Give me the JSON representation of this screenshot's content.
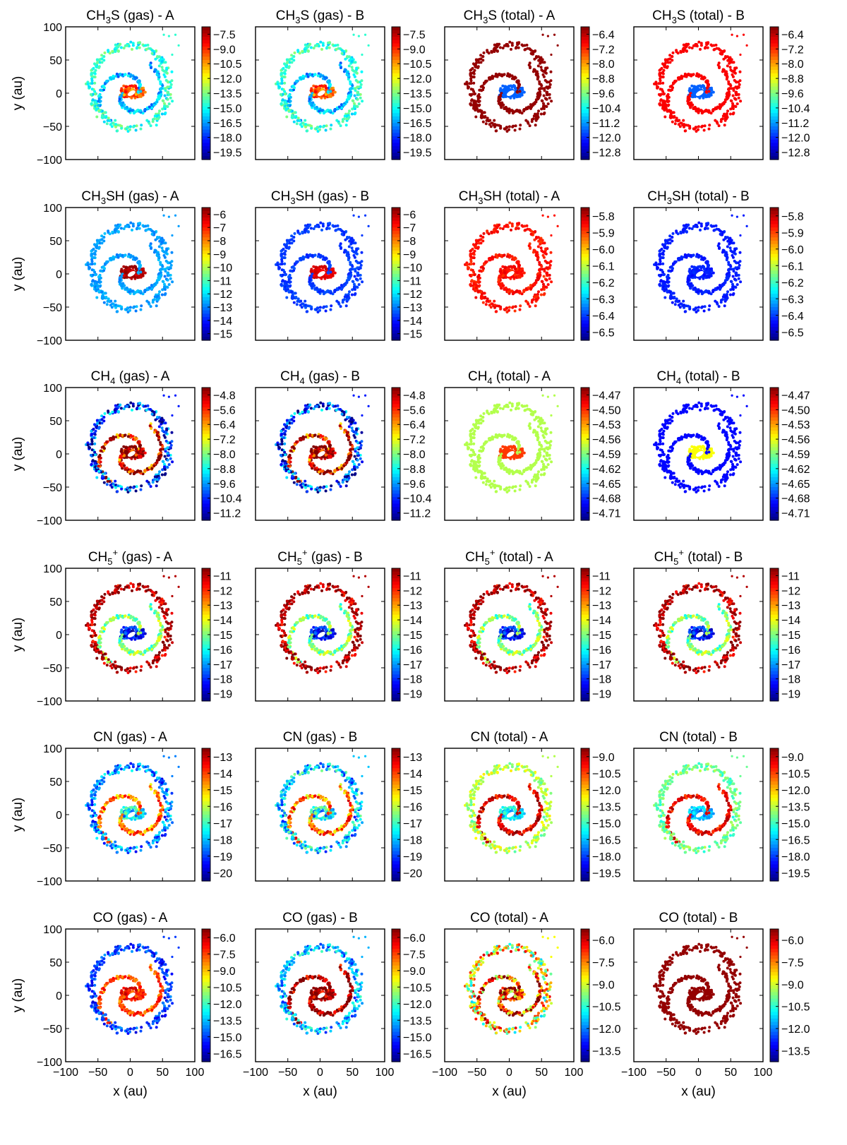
{
  "figure": {
    "x_axis_label": "x (au)",
    "y_axis_label": "y (au)",
    "axis_ticks": [
      -100,
      -50,
      0,
      50,
      100
    ],
    "axis_range": [
      -100,
      100
    ],
    "colormap": "jet"
  },
  "chart_data": [
    {
      "type": "scatter",
      "title_main": "CH",
      "title_sub": "3",
      "title_sup": "",
      "title_tail": "S (gas) -  A",
      "colorbar_ticks": [
        "-7.5",
        "-9.0",
        "-10.5",
        "-12.0",
        "-13.5",
        "-15.0",
        "-16.5",
        "-18.0",
        "-19.5"
      ],
      "scheme": {
        "ring": 0.42,
        "arm": 0.3,
        "core": 0.78,
        "noise": 0.1
      }
    },
    {
      "type": "scatter",
      "title_main": "CH",
      "title_sub": "3",
      "title_sup": "",
      "title_tail": "S (gas) -  B",
      "colorbar_ticks": [
        "-7.5",
        "-9.0",
        "-10.5",
        "-12.0",
        "-13.5",
        "-15.0",
        "-16.5",
        "-18.0",
        "-19.5"
      ],
      "scheme": {
        "ring": 0.42,
        "arm": 0.3,
        "core": 0.78,
        "noise": 0.1
      }
    },
    {
      "type": "scatter",
      "title_main": "CH",
      "title_sub": "3",
      "title_sup": "",
      "title_tail": "S (total) -  A",
      "colorbar_ticks": [
        "-6.4",
        "-7.2",
        "-8.0",
        "-8.8",
        "-9.6",
        "-10.4",
        "-11.2",
        "-12.0",
        "-12.8"
      ],
      "scheme": {
        "ring": 0.98,
        "arm": 0.98,
        "core": 0.22,
        "noise": 0.0
      }
    },
    {
      "type": "scatter",
      "title_main": "CH",
      "title_sub": "3",
      "title_sup": "",
      "title_tail": "S (total) -  B",
      "colorbar_ticks": [
        "-6.4",
        "-7.2",
        "-8.0",
        "-8.8",
        "-9.6",
        "-10.4",
        "-11.2",
        "-12.0",
        "-12.8"
      ],
      "scheme": {
        "ring": 0.88,
        "arm": 0.88,
        "core": 0.22,
        "noise": 0.0
      }
    },
    {
      "type": "scatter",
      "title_main": "CH",
      "title_sub": "3",
      "title_sup": "",
      "title_tail": "SH (gas) -  A",
      "colorbar_ticks": [
        "-6",
        "-7",
        "-8",
        "-9",
        "-10",
        "-11",
        "-12",
        "-13",
        "-14",
        "-15"
      ],
      "scheme": {
        "ring": 0.28,
        "arm": 0.28,
        "core": 0.95,
        "noise": 0.04
      }
    },
    {
      "type": "scatter",
      "title_main": "CH",
      "title_sub": "3",
      "title_sup": "",
      "title_tail": "SH (gas) -  B",
      "colorbar_ticks": [
        "-6",
        "-7",
        "-8",
        "-9",
        "-10",
        "-11",
        "-12",
        "-13",
        "-14",
        "-15"
      ],
      "scheme": {
        "ring": 0.18,
        "arm": 0.18,
        "core": 0.9,
        "noise": 0.03
      }
    },
    {
      "type": "scatter",
      "title_main": "CH",
      "title_sub": "3",
      "title_sup": "",
      "title_tail": "SH (total) -  A",
      "colorbar_ticks": [
        "-5.8",
        "-5.9",
        "-6.0",
        "-6.1",
        "-6.2",
        "-6.3",
        "-6.4",
        "-6.5"
      ],
      "scheme": {
        "ring": 0.86,
        "arm": 0.86,
        "core": 0.86,
        "noise": 0.04
      }
    },
    {
      "type": "scatter",
      "title_main": "CH",
      "title_sub": "3",
      "title_sup": "",
      "title_tail": "SH (total) -  B",
      "colorbar_ticks": [
        "-5.8",
        "-5.9",
        "-6.0",
        "-6.1",
        "-6.2",
        "-6.3",
        "-6.4",
        "-6.5"
      ],
      "scheme": {
        "ring": 0.15,
        "arm": 0.15,
        "core": 0.15,
        "noise": 0.02
      }
    },
    {
      "type": "scatter",
      "title_main": "CH",
      "title_sub": "4",
      "title_sup": "",
      "title_tail": " (gas) -  A",
      "colorbar_ticks": [
        "-4.8",
        "-5.6",
        "-6.4",
        "-7.2",
        "-8.0",
        "-8.8",
        "-9.6",
        "-10.4",
        "-11.2"
      ],
      "scheme": {
        "ring": 0.15,
        "arm": 0.9,
        "core": 0.97,
        "noise": 0.25
      }
    },
    {
      "type": "scatter",
      "title_main": "CH",
      "title_sub": "4",
      "title_sup": "",
      "title_tail": " (gas) -  B",
      "colorbar_ticks": [
        "-4.8",
        "-5.6",
        "-6.4",
        "-7.2",
        "-8.0",
        "-8.8",
        "-9.6",
        "-10.4",
        "-11.2"
      ],
      "scheme": {
        "ring": 0.15,
        "arm": 0.9,
        "core": 0.97,
        "noise": 0.25
      }
    },
    {
      "type": "scatter",
      "title_main": "CH",
      "title_sub": "4",
      "title_sup": "",
      "title_tail": " (total) -  A",
      "colorbar_ticks": [
        "-4.47",
        "-4.50",
        "-4.53",
        "-4.56",
        "-4.59",
        "-4.62",
        "-4.65",
        "-4.68",
        "-4.71"
      ],
      "scheme": {
        "ring": 0.55,
        "arm": 0.55,
        "core": 0.82,
        "noise": 0.0
      }
    },
    {
      "type": "scatter",
      "title_main": "CH",
      "title_sub": "4",
      "title_sup": "",
      "title_tail": " (total) -  B",
      "colorbar_ticks": [
        "-4.47",
        "-4.50",
        "-4.53",
        "-4.56",
        "-4.59",
        "-4.62",
        "-4.65",
        "-4.68",
        "-4.71"
      ],
      "scheme": {
        "ring": 0.13,
        "arm": 0.13,
        "core": 0.62,
        "noise": 0.0
      }
    },
    {
      "type": "scatter",
      "title_main": "CH",
      "title_sub": "5",
      "title_sup": "+",
      "title_tail": " (gas) -  A",
      "colorbar_ticks": [
        "-11",
        "-12",
        "-13",
        "-14",
        "-15",
        "-16",
        "-17",
        "-18",
        "-19"
      ],
      "scheme": {
        "ring": 0.95,
        "arm": 0.5,
        "core": 0.12,
        "noise": 0.12
      }
    },
    {
      "type": "scatter",
      "title_main": "CH",
      "title_sub": "5",
      "title_sup": "+",
      "title_tail": " (gas) -  B",
      "colorbar_ticks": [
        "-11",
        "-12",
        "-13",
        "-14",
        "-15",
        "-16",
        "-17",
        "-18",
        "-19"
      ],
      "scheme": {
        "ring": 0.95,
        "arm": 0.5,
        "core": 0.12,
        "noise": 0.12
      }
    },
    {
      "type": "scatter",
      "title_main": "CH",
      "title_sub": "5",
      "title_sup": "+",
      "title_tail": " (total) -  A",
      "colorbar_ticks": [
        "-11",
        "-12",
        "-13",
        "-14",
        "-15",
        "-16",
        "-17",
        "-18",
        "-19"
      ],
      "scheme": {
        "ring": 0.95,
        "arm": 0.5,
        "core": 0.12,
        "noise": 0.12
      }
    },
    {
      "type": "scatter",
      "title_main": "CH",
      "title_sub": "5",
      "title_sup": "+",
      "title_tail": " (total) -  B",
      "colorbar_ticks": [
        "-11",
        "-12",
        "-13",
        "-14",
        "-15",
        "-16",
        "-17",
        "-18",
        "-19"
      ],
      "scheme": {
        "ring": 0.95,
        "arm": 0.5,
        "core": 0.12,
        "noise": 0.12
      }
    },
    {
      "type": "scatter",
      "title_main": "CN (gas) -  A",
      "title_sub": "",
      "title_sup": "",
      "title_tail": "",
      "colorbar_ticks": [
        "-13",
        "-14",
        "-15",
        "-16",
        "-17",
        "-18",
        "-19",
        "-20"
      ],
      "scheme": {
        "ring": 0.25,
        "arm": 0.75,
        "core": 0.35,
        "noise": 0.15
      }
    },
    {
      "type": "scatter",
      "title_main": "CN (gas) -  B",
      "title_sub": "",
      "title_sup": "",
      "title_tail": "",
      "colorbar_ticks": [
        "-13",
        "-14",
        "-15",
        "-16",
        "-17",
        "-18",
        "-19",
        "-20"
      ],
      "scheme": {
        "ring": 0.32,
        "arm": 0.75,
        "core": 0.35,
        "noise": 0.18
      }
    },
    {
      "type": "scatter",
      "title_main": "CN (total) -  A",
      "title_sub": "",
      "title_sup": "",
      "title_tail": "",
      "colorbar_ticks": [
        "-9.0",
        "-10.5",
        "-12.0",
        "-13.5",
        "-15.0",
        "-16.5",
        "-18.0",
        "-19.5"
      ],
      "scheme": {
        "ring": 0.55,
        "arm": 0.9,
        "core": 0.35,
        "noise": 0.1
      }
    },
    {
      "type": "scatter",
      "title_main": "CN (total) -  B",
      "title_sub": "",
      "title_sup": "",
      "title_tail": "",
      "colorbar_ticks": [
        "-9.0",
        "-10.5",
        "-12.0",
        "-13.5",
        "-15.0",
        "-16.5",
        "-18.0",
        "-19.5"
      ],
      "scheme": {
        "ring": 0.48,
        "arm": 0.88,
        "core": 0.3,
        "noise": 0.08
      }
    },
    {
      "type": "scatter",
      "title_main": "CO (gas) -  A",
      "title_sub": "",
      "title_sup": "",
      "title_tail": "",
      "colorbar_ticks": [
        "-6.0",
        "-7.5",
        "-9.0",
        "-10.5",
        "-12.0",
        "-13.5",
        "-15.0",
        "-16.5"
      ],
      "scheme": {
        "ring": 0.18,
        "arm": 0.8,
        "core": 0.85,
        "noise": 0.1
      }
    },
    {
      "type": "scatter",
      "title_main": "CO (gas) -  B",
      "title_sub": "",
      "title_sup": "",
      "title_tail": "",
      "colorbar_ticks": [
        "-6.0",
        "-7.5",
        "-9.0",
        "-10.5",
        "-12.0",
        "-13.5",
        "-15.0",
        "-16.5"
      ],
      "scheme": {
        "ring": 0.3,
        "arm": 0.96,
        "core": 0.96,
        "noise": 0.15
      }
    },
    {
      "type": "scatter",
      "title_main": "CO (total) -  A",
      "title_sub": "",
      "title_sup": "",
      "title_tail": "",
      "colorbar_ticks": [
        "-6.0",
        "-7.5",
        "-9.0",
        "-10.5",
        "-12.0",
        "-13.5"
      ],
      "scheme": {
        "ring": 0.62,
        "arm": 0.8,
        "core": 0.8,
        "noise": 0.3
      }
    },
    {
      "type": "scatter",
      "title_main": "CO (total) -  B",
      "title_sub": "",
      "title_sup": "",
      "title_tail": "",
      "colorbar_ticks": [
        "-6.0",
        "-7.5",
        "-9.0",
        "-10.5",
        "-12.0",
        "-13.5"
      ],
      "scheme": {
        "ring": 0.98,
        "arm": 0.98,
        "core": 0.98,
        "noise": 0.0
      }
    }
  ]
}
